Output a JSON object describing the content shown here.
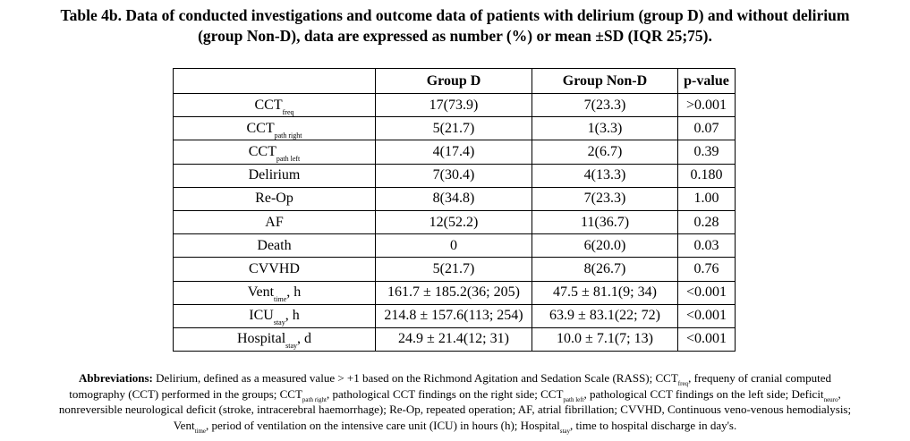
{
  "caption": {
    "line1": "Table 4b. Data of conducted investigations and outcome data of patients with delirium (group D) and without delirium",
    "line2": "(group Non-D), data are expressed as number (%) or mean ±SD (IQR 25;75)."
  },
  "table": {
    "headers": [
      "",
      "Group D",
      "Group Non-D",
      "p-value"
    ],
    "rows": [
      {
        "label": "CCT",
        "sub": "freq",
        "suffix": "",
        "d": "17(73.9)",
        "nond": "7(23.3)",
        "p": ">0.001"
      },
      {
        "label": "CCT",
        "sub": "path right",
        "suffix": "",
        "d": "5(21.7)",
        "nond": "1(3.3)",
        "p": "0.07"
      },
      {
        "label": "CCT",
        "sub": "path left",
        "suffix": "",
        "d": "4(17.4)",
        "nond": "2(6.7)",
        "p": "0.39"
      },
      {
        "label": "Delirium",
        "sub": "",
        "suffix": "",
        "d": "7(30.4)",
        "nond": "4(13.3)",
        "p": "0.180"
      },
      {
        "label": "Re-Op",
        "sub": "",
        "suffix": "",
        "d": "8(34.8)",
        "nond": "7(23.3)",
        "p": "1.00"
      },
      {
        "label": "AF",
        "sub": "",
        "suffix": "",
        "d": "12(52.2)",
        "nond": "11(36.7)",
        "p": "0.28"
      },
      {
        "label": "Death",
        "sub": "",
        "suffix": "",
        "d": "0",
        "nond": "6(20.0)",
        "p": "0.03"
      },
      {
        "label": "CVVHD",
        "sub": "",
        "suffix": "",
        "d": "5(21.7)",
        "nond": "8(26.7)",
        "p": "0.76"
      },
      {
        "label": "Vent",
        "sub": "time",
        "suffix": ", h",
        "d": "161.7 ± 185.2(36; 205)",
        "nond": "47.5 ± 81.1(9; 34)",
        "p": "<0.001"
      },
      {
        "label": "ICU",
        "sub": "stay",
        "suffix": ", h",
        "d": "214.8 ± 157.6(113; 254)",
        "nond": "63.9 ± 83.1(22; 72)",
        "p": "<0.001"
      },
      {
        "label": "Hospital",
        "sub": "stay",
        "suffix": ", d",
        "d": "24.9 ± 21.4(12; 31)",
        "nond": "10.0 ± 7.1(7; 13)",
        "p": "<0.001"
      }
    ]
  },
  "abbreviations": {
    "lead": "Abbreviations:",
    "line1_a": " Delirium, defined as a measured value > +1 based on the Richmond Agitation and Sedation Scale (RASS); CCT",
    "line1_sub": "freq",
    "line1_b": ", frequeny of cranial computed",
    "line2_a": "tomography (CCT) performed in the groups; CCT",
    "line2_sub1": "path right",
    "line2_b": ", pathological CCT findings on the right side; CCT",
    "line2_sub2": "path left",
    "line2_c": ", pathological CCT findings on the left side; Deficit",
    "line2_sub3": "neuro",
    "line2_d": ",",
    "line3": "nonreversible neurological deficit (stroke, intracerebral haemorrhage); Re-Op, repeated operation; AF, atrial fibrillation; CVVHD, Continuous veno-venous hemodialysis;",
    "line4_a": "Vent",
    "line4_sub1": "time",
    "line4_b": ", period of ventilation on the intensive care unit (ICU) in hours (h); Hospital",
    "line4_sub2": "stay",
    "line4_c": ", time to hospital discharge in day's."
  }
}
